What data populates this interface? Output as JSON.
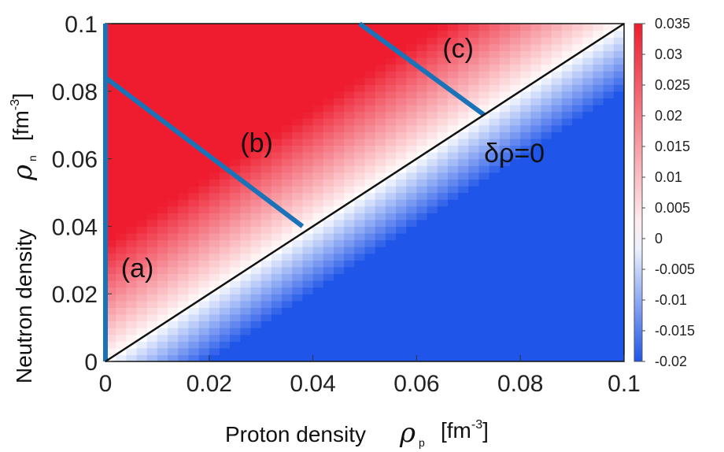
{
  "chart_data": {
    "type": "heatmap",
    "x": {
      "min": 0,
      "max": 0.1,
      "ticks": [
        0,
        0.02,
        0.04,
        0.06,
        0.08,
        0.1
      ],
      "tick_labels": [
        "0",
        "0.02",
        "0.04",
        "0.06",
        "0.08",
        "0.1"
      ]
    },
    "y": {
      "min": 0,
      "max": 0.1,
      "ticks": [
        0,
        0.02,
        0.04,
        0.06,
        0.08,
        0.1
      ],
      "tick_labels": [
        "0",
        "0.02",
        "0.04",
        "0.06",
        "0.08",
        "0.1"
      ]
    },
    "xlabel": {
      "word": "Proton density",
      "symbol": "ρ",
      "subscript": "p",
      "unit": "[fm",
      "unit_exp": "-3",
      "unit_close": "]"
    },
    "ylabel": {
      "word": "Neutron density",
      "symbol": "ρ",
      "subscript": "n",
      "unit": "[fm",
      "unit_exp": "-3",
      "unit_close": "]"
    },
    "colorbar": {
      "min": -0.02,
      "max": 0.035,
      "ticks": [
        0.035,
        0.03,
        0.025,
        0.02,
        0.015,
        0.01,
        0.005,
        0,
        -0.005,
        -0.01,
        -0.015,
        -0.02
      ],
      "tick_labels": [
        "0.035",
        "0.03",
        "0.025",
        "0.02",
        "0.015",
        "0.01",
        "0.005",
        "0",
        "-0.005",
        "-0.01",
        "-0.015",
        "-0.02"
      ],
      "colors": {
        "high": "#ee1c2e",
        "mid": "#ffffff",
        "low": "#1f55e8"
      }
    },
    "field": "rho_n - rho_p",
    "lines": [
      {
        "name": "(a)",
        "label": "(a)",
        "color": "#1a73b8",
        "points": [
          [
            0,
            0
          ],
          [
            0,
            0.1
          ]
        ],
        "label_at": [
          0.003,
          0.025
        ]
      },
      {
        "name": "(b)",
        "label": "(b)",
        "color": "#1a73b8",
        "points": [
          [
            0,
            0.084
          ],
          [
            0.038,
            0.04
          ]
        ],
        "label_at": [
          0.026,
          0.062
        ]
      },
      {
        "name": "(c)",
        "label": "(c)",
        "color": "#1a73b8",
        "points": [
          [
            0.049,
            0.1
          ],
          [
            0.073,
            0.073
          ]
        ],
        "label_at": [
          0.065,
          0.09
        ]
      },
      {
        "name": "diagonal",
        "label": "δρ=0",
        "color": "#111111",
        "points": [
          [
            0,
            0
          ],
          [
            0.1,
            0.1
          ]
        ],
        "label_at": [
          0.073,
          0.059
        ]
      }
    ]
  }
}
